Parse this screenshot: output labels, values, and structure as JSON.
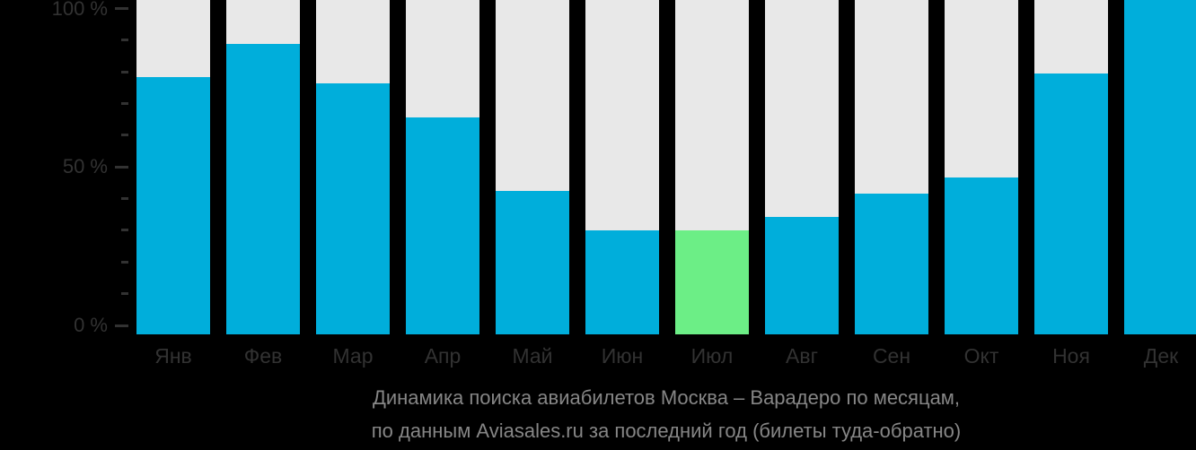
{
  "chart_data": {
    "type": "bar",
    "title": "Динамика поиска авиабилетов Москва – Варадеро по месяцам,",
    "subtitle": "по данным Aviasales.ru за последний год (билеты туда-обратно)",
    "categories": [
      "Янв",
      "Фев",
      "Мар",
      "Апр",
      "Май",
      "Июн",
      "Июл",
      "Авг",
      "Сен",
      "Окт",
      "Ноя",
      "Дек"
    ],
    "category_keys": [
      "jan",
      "feb",
      "mar",
      "apr",
      "may",
      "jun",
      "jul",
      "aug",
      "sep",
      "oct",
      "nov",
      "dec"
    ],
    "values": [
      77,
      87,
      75,
      65,
      43,
      31,
      31,
      35,
      42,
      47,
      78,
      100
    ],
    "unit": "%",
    "highlighted_category": "Июл",
    "highlight_index": 6,
    "ylim": [
      0,
      100
    ],
    "y_axis": {
      "minor_tick_step": 10,
      "ticks": [
        {
          "value": 0,
          "label": "0 %"
        },
        {
          "value": 50,
          "label": "50 %"
        },
        {
          "value": 100,
          "label": "100 %"
        }
      ]
    },
    "xlabel": "",
    "ylabel": "",
    "grid": "off",
    "legend": "none",
    "colors": {
      "bar": "#00AEDB",
      "bar_highlight": "#6CEE86",
      "bar_track": "#E8E8E8",
      "axis_text": "#323232",
      "caption_text": "#868686",
      "background": "#000000"
    }
  }
}
